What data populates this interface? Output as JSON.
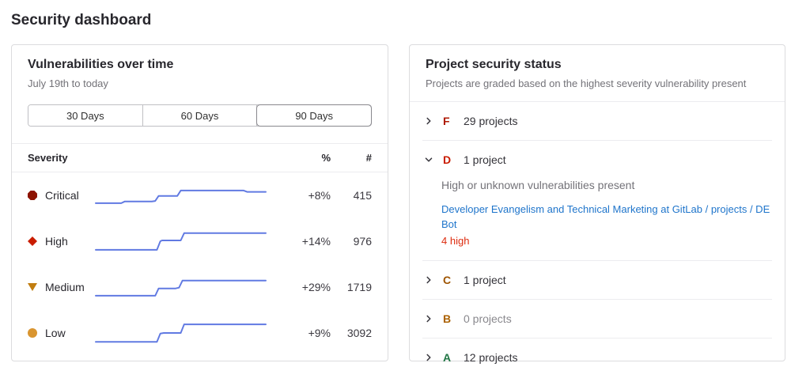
{
  "page": {
    "title": "Security dashboard"
  },
  "vuln_panel": {
    "title": "Vulnerabilities over time",
    "subtitle": "July 19th to today",
    "range_buttons": [
      {
        "label": "30 Days",
        "selected": false
      },
      {
        "label": "60 Days",
        "selected": false
      },
      {
        "label": "90 Days",
        "selected": true
      }
    ],
    "table_headers": {
      "severity": "Severity",
      "percent": "%",
      "count": "#"
    },
    "spark_color": "#617ae2",
    "rows": [
      {
        "severity": "Critical",
        "icon": "critical-severity-icon",
        "color": "#8d1300",
        "change": "+8%",
        "count": "415",
        "spark": [
          [
            0,
            79
          ],
          [
            15,
            79
          ],
          [
            17,
            73
          ],
          [
            33,
            73
          ],
          [
            35,
            71
          ],
          [
            37,
            52
          ],
          [
            48,
            52
          ],
          [
            50,
            32
          ],
          [
            87,
            32
          ],
          [
            89,
            37
          ],
          [
            100,
            37
          ]
        ]
      },
      {
        "severity": "High",
        "icon": "high-severity-icon",
        "color": "#c91c00",
        "change": "+14%",
        "count": "976",
        "spark": [
          [
            0,
            82
          ],
          [
            36,
            82
          ],
          [
            38,
            50
          ],
          [
            39,
            47
          ],
          [
            50,
            47
          ],
          [
            52,
            20
          ],
          [
            100,
            20
          ]
        ]
      },
      {
        "severity": "Medium",
        "icon": "medium-severity-icon",
        "color": "#c17d10",
        "change": "+29%",
        "count": "1719",
        "spark": [
          [
            0,
            82
          ],
          [
            35,
            82
          ],
          [
            37,
            55
          ],
          [
            47,
            55
          ],
          [
            49,
            52
          ],
          [
            51,
            26
          ],
          [
            100,
            26
          ]
        ]
      },
      {
        "severity": "Low",
        "icon": "low-severity-icon",
        "color": "#d99530",
        "change": "+9%",
        "count": "3092",
        "spark": [
          [
            0,
            83
          ],
          [
            36,
            83
          ],
          [
            38,
            52
          ],
          [
            40,
            50
          ],
          [
            50,
            50
          ],
          [
            52,
            18
          ],
          [
            100,
            18
          ]
        ]
      }
    ]
  },
  "status_panel": {
    "title": "Project security status",
    "subtitle": "Projects are graded based on the highest severity vulnerability present",
    "grades": [
      {
        "letter": "F",
        "color": "#ae1800",
        "count_label": "29 projects",
        "expanded": false,
        "muted": false
      },
      {
        "letter": "D",
        "color": "#c91c00",
        "count_label": "1 project",
        "expanded": true,
        "muted": false,
        "description": "High or unknown vulnerabilities present",
        "project_link": "Developer Evangelism and Technical Marketing at GitLab / projects / DE Bot",
        "vuln_count": "4 high",
        "vuln_count_color": "#dd2b0e"
      },
      {
        "letter": "C",
        "color": "#9e5400",
        "count_label": "1 project",
        "expanded": false,
        "muted": false
      },
      {
        "letter": "B",
        "color": "#ab6100",
        "count_label": "0 projects",
        "expanded": false,
        "muted": true
      },
      {
        "letter": "A",
        "color": "#217645",
        "count_label": "12 projects",
        "expanded": false,
        "muted": false
      }
    ]
  }
}
